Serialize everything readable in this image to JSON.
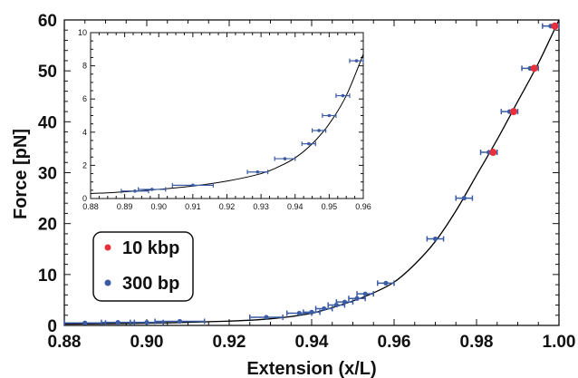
{
  "chart_data": [
    {
      "type": "scatter",
      "title": "",
      "xlabel": "Extension (x/L)",
      "ylabel": "Force [pN]",
      "xlim": [
        0.88,
        1.0
      ],
      "ylim": [
        0,
        60
      ],
      "xticks": [
        "0.88",
        "0.90",
        "0.92",
        "0.94",
        "0.96",
        "0.98",
        "1.00"
      ],
      "yticks": [
        "0",
        "10",
        "20",
        "30",
        "40",
        "50",
        "60"
      ],
      "legend_position": "bottom-left",
      "grid": false,
      "series": [
        {
          "name": "10 kbp",
          "color": "#e8303a",
          "points": [
            {
              "x": 0.984,
              "y": 34.0
            },
            {
              "x": 0.989,
              "y": 42.0
            },
            {
              "x": 0.994,
              "y": 50.5
            },
            {
              "x": 0.999,
              "y": 58.8
            }
          ]
        },
        {
          "name": "300 bp",
          "color": "#3b5ba5",
          "points": [
            {
              "x": 0.885,
              "y": 0.5,
              "xerr": 0.005
            },
            {
              "x": 0.893,
              "y": 0.6,
              "xerr": 0.004
            },
            {
              "x": 0.9,
              "y": 0.6,
              "xerr": 0.004
            },
            {
              "x": 0.908,
              "y": 0.8,
              "xerr": 0.006
            },
            {
              "x": 0.929,
              "y": 1.6,
              "xerr": 0.004
            },
            {
              "x": 0.937,
              "y": 2.4,
              "xerr": 0.003
            },
            {
              "x": 0.94,
              "y": 2.6,
              "xerr": 0.002
            },
            {
              "x": 0.943,
              "y": 3.3,
              "xerr": 0.002
            },
            {
              "x": 0.946,
              "y": 4.0,
              "xerr": 0.002
            },
            {
              "x": 0.948,
              "y": 4.6,
              "xerr": 0.002
            },
            {
              "x": 0.951,
              "y": 5.3,
              "xerr": 0.002
            },
            {
              "x": 0.953,
              "y": 6.2,
              "xerr": 0.002
            },
            {
              "x": 0.958,
              "y": 8.3,
              "xerr": 0.002
            },
            {
              "x": 0.97,
              "y": 17.0,
              "xerr": 0.002
            },
            {
              "x": 0.977,
              "y": 25.0,
              "xerr": 0.002
            },
            {
              "x": 0.983,
              "y": 34.0,
              "xerr": 0.002
            },
            {
              "x": 0.988,
              "y": 42.0,
              "xerr": 0.002
            },
            {
              "x": 0.993,
              "y": 50.5,
              "xerr": 0.002
            },
            {
              "x": 0.998,
              "y": 58.8,
              "xerr": 0.002
            }
          ]
        },
        {
          "name": "",
          "type": "line",
          "color": "#000000",
          "x": [
            0.88,
            0.9,
            0.92,
            0.93,
            0.94,
            0.95,
            0.955,
            0.96,
            0.965,
            0.97,
            0.975,
            0.98,
            0.985,
            0.99,
            0.995,
            1.0
          ],
          "y": [
            0.27,
            0.42,
            0.85,
            1.3,
            2.4,
            4.8,
            6.4,
            8.5,
            12.0,
            16.5,
            22.5,
            29.5,
            36.5,
            44.0,
            51.5,
            60.0
          ]
        }
      ]
    },
    {
      "type": "scatter",
      "title": "",
      "xlabel": "",
      "ylabel": "",
      "xlim": [
        0.88,
        0.96
      ],
      "ylim": [
        0,
        10
      ],
      "xticks": [
        "0.88",
        "0.89",
        "0.90",
        "0.91",
        "0.92",
        "0.93",
        "0.94",
        "0.95",
        "0.96"
      ],
      "yticks": [
        "0",
        "2",
        "4",
        "6",
        "8",
        "10"
      ],
      "series": [
        {
          "name": "",
          "color": "#3b5ba5",
          "points": [
            {
              "x": 0.893,
              "y": 0.45,
              "xerr": 0.004
            },
            {
              "x": 0.898,
              "y": 0.55,
              "xerr": 0.004
            },
            {
              "x": 0.91,
              "y": 0.8,
              "xerr": 0.006
            },
            {
              "x": 0.929,
              "y": 1.6,
              "xerr": 0.003
            },
            {
              "x": 0.937,
              "y": 2.4,
              "xerr": 0.003
            },
            {
              "x": 0.944,
              "y": 3.3,
              "xerr": 0.002
            },
            {
              "x": 0.947,
              "y": 4.1,
              "xerr": 0.002
            },
            {
              "x": 0.95,
              "y": 5.0,
              "xerr": 0.002
            },
            {
              "x": 0.954,
              "y": 6.2,
              "xerr": 0.002
            },
            {
              "x": 0.958,
              "y": 8.3,
              "xerr": 0.002
            }
          ]
        },
        {
          "name": "",
          "type": "line",
          "color": "#000000",
          "x": [
            0.88,
            0.89,
            0.9,
            0.91,
            0.92,
            0.93,
            0.935,
            0.94,
            0.945,
            0.95,
            0.955,
            0.96
          ],
          "y": [
            0.3,
            0.4,
            0.55,
            0.75,
            1.05,
            1.5,
            1.9,
            2.45,
            3.3,
            4.5,
            6.2,
            8.7
          ]
        }
      ]
    }
  ]
}
